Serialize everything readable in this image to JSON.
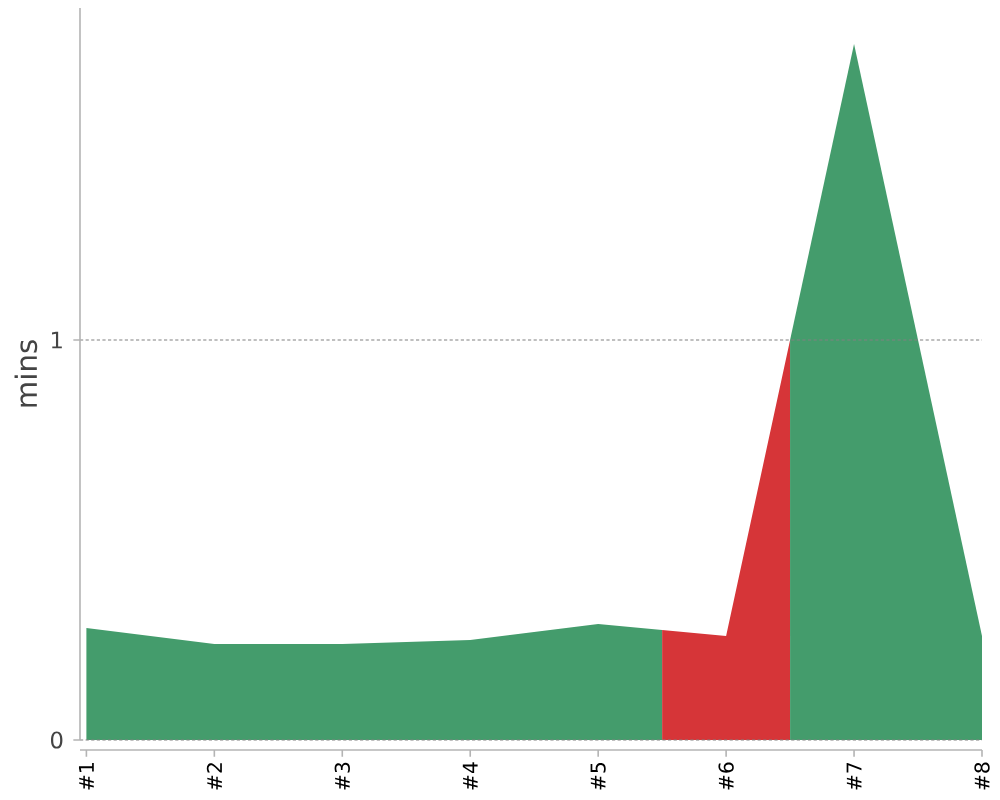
{
  "chart_data": {
    "type": "area",
    "ylabel": "mins",
    "series": [
      {
        "color": "#449c6c",
        "x": [
          1,
          2,
          3,
          4,
          5,
          5.5
        ],
        "values": [
          0.28,
          0.24,
          0.24,
          0.25,
          0.29,
          0.275
        ]
      },
      {
        "color": "#d63538",
        "x": [
          5.5,
          6,
          6.5
        ],
        "values": [
          0.275,
          0.26,
          1
        ]
      },
      {
        "color": "#449c6c",
        "x": [
          6.5,
          7,
          8
        ],
        "values": [
          1,
          1.74,
          0.26
        ]
      }
    ],
    "xlim": [
      0.95,
      8
    ],
    "xticks": [
      {
        "value": 1,
        "label": "#1"
      },
      {
        "value": 2,
        "label": "#2"
      },
      {
        "value": 3,
        "label": "#3"
      },
      {
        "value": 4,
        "label": "#4"
      },
      {
        "value": 5,
        "label": "#5"
      },
      {
        "value": 6,
        "label": "#6"
      },
      {
        "value": 7,
        "label": "#7"
      },
      {
        "value": 8,
        "label": "#8"
      }
    ],
    "ylim": [
      0,
      1.83
    ],
    "yticks": [
      0,
      1
    ],
    "grid": "y"
  }
}
